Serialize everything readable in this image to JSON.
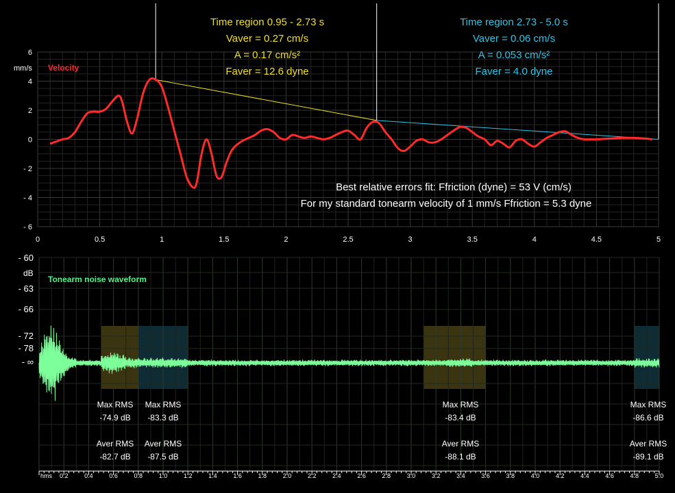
{
  "chart_data": [
    {
      "type": "line",
      "title": "Velocity",
      "ylabel": "mm/s",
      "xlim": [
        0,
        5
      ],
      "ylim": [
        -6,
        6
      ],
      "grid": true,
      "x_ticks": [
        "0",
        "0.5",
        "1",
        "1.5",
        "2",
        "2.5",
        "3",
        "3.5",
        "4",
        "4.5",
        "5"
      ],
      "y_ticks": [
        "6",
        "4",
        "2",
        "0",
        "- 2",
        "- 4",
        "- 6"
      ],
      "colors": {
        "velocity": "#ff2a2a",
        "region1": "#f2e01c",
        "region2": "#2fc6e8",
        "text": "#ffffff"
      },
      "series": [
        {
          "name": "Velocity",
          "x": [
            0.1,
            0.15,
            0.2,
            0.25,
            0.3,
            0.35,
            0.4,
            0.45,
            0.5,
            0.55,
            0.6,
            0.65,
            0.68,
            0.72,
            0.76,
            0.8,
            0.85,
            0.9,
            0.95,
            1.0,
            1.05,
            1.1,
            1.15,
            1.2,
            1.25,
            1.28,
            1.32,
            1.36,
            1.4,
            1.44,
            1.48,
            1.52,
            1.56,
            1.6,
            1.65,
            1.7,
            1.75,
            1.8,
            1.85,
            1.9,
            1.95,
            2.0,
            2.05,
            2.1,
            2.15,
            2.2,
            2.25,
            2.3,
            2.35,
            2.4,
            2.45,
            2.5,
            2.55,
            2.6,
            2.65,
            2.7,
            2.75,
            2.8,
            2.85,
            2.9,
            2.95,
            3.0,
            3.05,
            3.1,
            3.15,
            3.2,
            3.25,
            3.3,
            3.35,
            3.4,
            3.45,
            3.5,
            3.55,
            3.6,
            3.65,
            3.7,
            3.75,
            3.8,
            3.85,
            3.9,
            3.95,
            4.0,
            4.05,
            4.1,
            4.15,
            4.2,
            4.25,
            4.3,
            4.35,
            4.4,
            4.45,
            4.5,
            4.6,
            4.7,
            4.8,
            4.9,
            4.95
          ],
          "values": [
            -0.3,
            -0.15,
            0.0,
            0.1,
            0.5,
            1.2,
            1.8,
            1.9,
            1.9,
            2.1,
            2.6,
            3.0,
            2.6,
            1.2,
            0.4,
            1.4,
            3.2,
            4.1,
            4.1,
            3.6,
            2.2,
            0.6,
            -1.0,
            -2.6,
            -3.3,
            -3.0,
            -1.0,
            0.0,
            -1.0,
            -2.5,
            -2.6,
            -1.6,
            -0.8,
            -0.4,
            -0.1,
            0.1,
            0.3,
            0.6,
            0.7,
            0.5,
            0.1,
            0.0,
            0.3,
            0.2,
            0.1,
            0.2,
            0.1,
            0.0,
            0.1,
            0.3,
            0.5,
            0.6,
            0.3,
            0.0,
            0.8,
            1.2,
            1.1,
            0.5,
            0.0,
            -0.6,
            -0.8,
            -0.5,
            -0.1,
            0.0,
            -0.2,
            -0.2,
            0.0,
            0.3,
            0.6,
            0.85,
            0.8,
            0.5,
            0.2,
            0.0,
            -0.4,
            -0.1,
            -0.3,
            -0.55,
            -0.1,
            0.0,
            -0.3,
            -0.5,
            -0.2,
            0.1,
            0.3,
            0.5,
            0.55,
            0.3,
            0.1,
            0.0,
            0.0,
            0.0,
            0.05,
            0.1,
            0.1,
            0.05,
            0.0
          ]
        }
      ],
      "fit_lines": [
        {
          "x": [
            0.95,
            2.73
          ],
          "y": [
            4.1,
            1.3
          ],
          "color": "region1"
        },
        {
          "x": [
            2.73,
            5.0
          ],
          "y": [
            1.3,
            0.0
          ],
          "color": "region2"
        }
      ],
      "region_markers_x": [
        0.95,
        2.73,
        5.0
      ],
      "annotations": {
        "region1": [
          "Time region 0.95 - 2.73 s",
          "Vaver = 0.27 cm/s",
          "A = 0.17 cm/s²",
          "Faver = 12.6 dyne"
        ],
        "region2": [
          "Time region 2.73 - 5.0 s",
          "Vaver = 0.06 cm/s",
          "A = 0.053 cm/s²",
          "Faver = 4.0 dyne"
        ],
        "fit_line1": "Best relative errors fit: Ffriction (dyne) = 53 V (cm/s)",
        "fit_line2": "For my standard tonearm velocity of 1 mm/s Ffriction = 5.3 dyne"
      }
    },
    {
      "type": "line",
      "title": "Tonearm noise waveform",
      "ylabel": "dB",
      "xlabel": "hms",
      "xlim": [
        0,
        5
      ],
      "grid": true,
      "x_ticks": [
        "0.2",
        "0.4",
        "0.6",
        "0.8",
        "1.0",
        "1.2",
        "1.4",
        "1.6",
        "1.8",
        "2.0",
        "2.2",
        "2.4",
        "2.6",
        "2.8",
        "3.0",
        "3.2",
        "3.4",
        "3.6",
        "3.8",
        "4.0",
        "4.2",
        "4.4",
        "4.6",
        "4.8",
        "5.0"
      ],
      "y_ticks": [
        "- 60",
        "- 63",
        "- 66",
        "- 72",
        "- 78",
        "- ∞"
      ],
      "colors": {
        "waveform": "#7dff9a",
        "text": "#ffffff",
        "title": "#55ee88",
        "yellow_region": "#3a3410",
        "cyan_region": "#0f2c34"
      },
      "highlight_regions": [
        {
          "x": [
            0.5,
            0.8
          ],
          "color": "yellow_region"
        },
        {
          "x": [
            0.8,
            1.2
          ],
          "color": "cyan_region"
        },
        {
          "x": [
            3.1,
            3.6
          ],
          "color": "yellow_region"
        },
        {
          "x": [
            4.8,
            5.0
          ],
          "color": "cyan_region"
        }
      ],
      "rms_labels": [
        {
          "max": "-74.9 dB",
          "aver": "-82.7 dB"
        },
        {
          "max": "-83.3 dB",
          "aver": "-87.5 dB"
        },
        {
          "max": "-83.4 dB",
          "aver": "-88.1 dB"
        },
        {
          "max": "-86.6 dB",
          "aver": "-89.1 dB"
        }
      ],
      "max_label": "Max RMS",
      "aver_label": "Aver RMS"
    }
  ]
}
